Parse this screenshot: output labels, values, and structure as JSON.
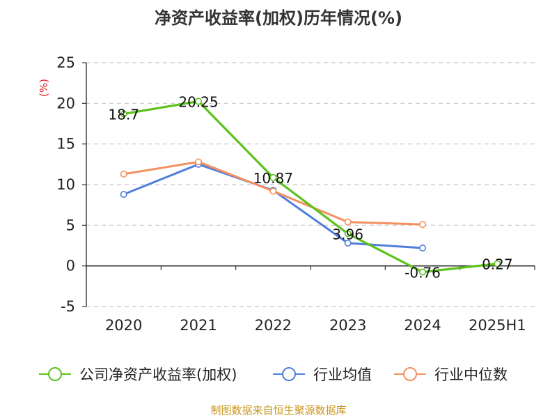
{
  "chart_data": {
    "type": "line",
    "title": "净资产收益率(加权)历年情况(%)",
    "ylabel": "(%)",
    "xlabel": "",
    "categories": [
      "2020",
      "2021",
      "2022",
      "2023",
      "2024",
      "2025H1"
    ],
    "ylim": [
      -5,
      25
    ],
    "yticks": [
      25,
      20,
      15,
      10,
      5,
      0,
      -5
    ],
    "grid": true,
    "legend_position": "bottom",
    "series": [
      {
        "name": "公司净资产收益率(加权)",
        "color": "#5cc21c",
        "values": [
          18.7,
          20.25,
          10.87,
          3.96,
          -0.76,
          0.27
        ],
        "labels": [
          "18.7",
          "20.25",
          "10.87",
          "3.96",
          "-0.76",
          "0.27"
        ]
      },
      {
        "name": "行业均值",
        "color": "#4f7fdc",
        "values": [
          8.8,
          12.5,
          9.3,
          2.8,
          2.2,
          null
        ]
      },
      {
        "name": "行业中位数",
        "color": "#f49060",
        "values": [
          11.3,
          12.8,
          9.2,
          5.4,
          5.1,
          null
        ]
      }
    ]
  },
  "source_note": "制图数据来自恒生聚源数据库"
}
